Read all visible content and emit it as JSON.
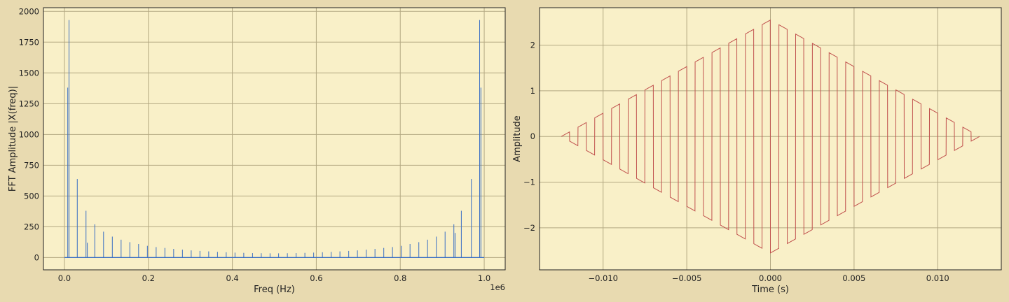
{
  "chart_data": [
    {
      "type": "line",
      "title": "",
      "xlabel": "Freq (Hz)",
      "ylabel": "FFT Amplitude |X(freq)|",
      "x_offset_label": "1e6",
      "xlim": [
        -0.05,
        1.05
      ],
      "ylim": [
        -100,
        2030
      ],
      "xticks": [
        0.0,
        0.2,
        0.4,
        0.6,
        0.8,
        1.0
      ],
      "xtick_labels": [
        "0.0",
        "0.2",
        "0.4",
        "0.6",
        "0.8",
        "1.0"
      ],
      "yticks": [
        0,
        250,
        500,
        750,
        1000,
        1250,
        1500,
        1750,
        2000
      ],
      "ytick_labels": [
        "0",
        "250",
        "500",
        "750",
        "1000",
        "1250",
        "1500",
        "1750",
        "2000"
      ],
      "grid": true,
      "color": "#3a6fc4",
      "peaks_x": [
        0.0079,
        0.0109,
        0.0306,
        0.0514,
        0.0545,
        0.0723,
        0.0932,
        0.1141,
        0.135,
        0.1558,
        0.1767,
        0.1976,
        0.2185,
        0.2393,
        0.2602,
        0.2811,
        0.302,
        0.3228,
        0.3437,
        0.3646,
        0.3854,
        0.4063,
        0.4272,
        0.4481,
        0.4689,
        0.4898,
        0.5102,
        0.5311,
        0.5519,
        0.5728,
        0.5937,
        0.6146,
        0.6354,
        0.6563,
        0.6772,
        0.698,
        0.7189,
        0.7398,
        0.7607,
        0.7815,
        0.8024,
        0.8233,
        0.8442,
        0.865,
        0.8859,
        0.9068,
        0.9277,
        0.9306,
        0.9455,
        0.9694,
        0.9891,
        0.9921
      ],
      "peaks_y": [
        1380,
        1930,
        638,
        380,
        120,
        270,
        210,
        170,
        145,
        125,
        110,
        95,
        85,
        78,
        70,
        64,
        58,
        54,
        50,
        46,
        43,
        40,
        38,
        36,
        35,
        34,
        34,
        35,
        36,
        38,
        40,
        43,
        46,
        50,
        54,
        58,
        64,
        70,
        78,
        85,
        95,
        110,
        125,
        145,
        170,
        210,
        270,
        200,
        380,
        638,
        1930,
        1380
      ]
    },
    {
      "type": "line",
      "title": "",
      "xlabel": "Time (s)",
      "ylabel": "Amplitude",
      "xlim": [
        -0.0138,
        0.0138
      ],
      "ylim": [
        -2.92,
        2.82
      ],
      "xticks": [
        -0.01,
        -0.005,
        0.0,
        0.005,
        0.01
      ],
      "xtick_labels": [
        "−0.010",
        "−0.005",
        "0.000",
        "0.005",
        "0.010"
      ],
      "yticks": [
        -2,
        -1,
        0,
        1,
        2
      ],
      "ytick_labels": [
        "−2",
        "−1",
        "0",
        "1",
        "2"
      ],
      "grid": true,
      "color": "#c0504d",
      "x_range": [
        -0.0125,
        0.0125
      ],
      "envelope_peak": 2.55,
      "square_wave_period": 0.001,
      "square_wave_phase_at_zero": 0.5
    }
  ]
}
